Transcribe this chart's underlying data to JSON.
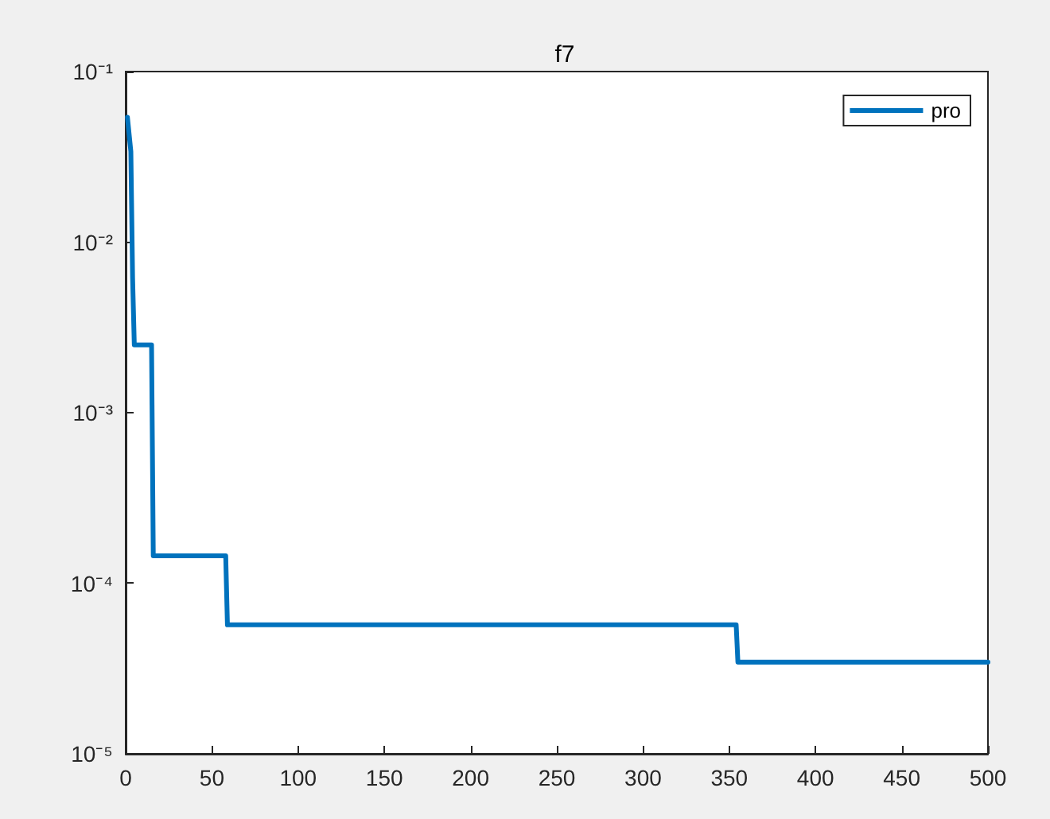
{
  "chart_data": {
    "type": "line",
    "title": "f7",
    "log": "y",
    "grid": false,
    "legend": "top right",
    "marker": "none",
    "line_style": "solid",
    "x": [
      1,
      3,
      4,
      5,
      15,
      16,
      58,
      59,
      354,
      355,
      500
    ],
    "series": [
      {
        "name": "pro",
        "color": "#0072bd",
        "values": [
          0.054,
          0.034,
          0.0062,
          0.0025,
          0.0025,
          0.000145,
          0.000145,
          5.7e-05,
          5.7e-05,
          3.45e-05,
          3.45e-05
        ]
      }
    ],
    "xlim": [
      0,
      500
    ],
    "xticks": [
      0,
      50,
      100,
      150,
      200,
      250,
      300,
      350,
      400,
      450,
      500
    ],
    "ylim": [
      1e-05,
      0.1
    ],
    "yticks": [
      {
        "value": 1e-05,
        "label": "10⁻⁵"
      },
      {
        "value": 0.0001,
        "label": "10⁻⁴"
      },
      {
        "value": 0.001,
        "label": "10⁻³"
      },
      {
        "value": 0.01,
        "label": "10⁻²"
      },
      {
        "value": 0.1,
        "label": "10⁻¹"
      }
    ]
  }
}
